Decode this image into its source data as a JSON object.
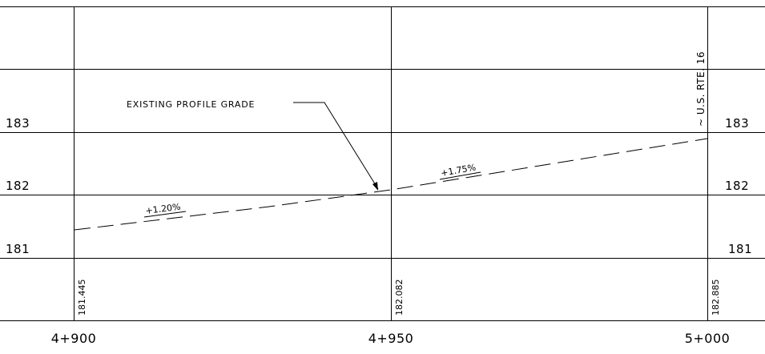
{
  "profile": {
    "elevation_labels": {
      "e183": "183",
      "e182": "182",
      "e181": "181"
    },
    "annotation": "EXISTING PROFILE GRADE",
    "grades": {
      "left": "+1.20%",
      "right": "+1.75%"
    },
    "route_label": "~ U.S. RTE. 16",
    "profile_elevations": {
      "at_4900": "181.445",
      "at_4950": "182.082",
      "at_5000": "182.885"
    },
    "stations": {
      "s4900": "4+900",
      "s4950": "4+950",
      "s5000": "5+000"
    }
  }
}
